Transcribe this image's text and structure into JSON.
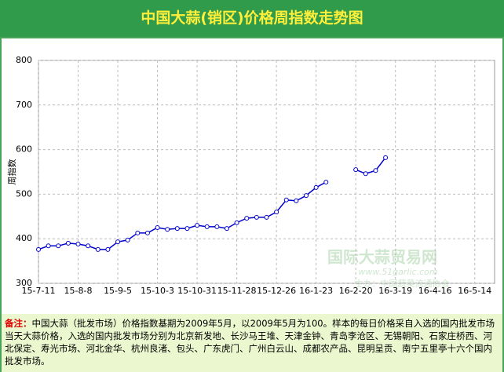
{
  "chart_data": {
    "type": "line",
    "title": "中国大蒜(销区)价格周指数走势图",
    "y_label": "周指数",
    "watermark": [
      "国际大蒜贸易网",
      "www.51garlic.com",
      "主办：中国蔬菜流通协会"
    ],
    "categories": [
      "15-7-11",
      null,
      null,
      null,
      "15-8-8",
      null,
      null,
      null,
      "15-9-5",
      null,
      null,
      null,
      "15-10-3",
      null,
      null,
      null,
      "15-10-31",
      null,
      null,
      null,
      "15-11-28",
      null,
      null,
      null,
      "15-12-26",
      null,
      null,
      null,
      "16-1-23",
      null,
      null,
      null,
      "16-2-20",
      null,
      null,
      null,
      "16-3-19",
      null,
      null,
      null,
      "16-4-16",
      null,
      null,
      null,
      "16-5-14",
      null,
      null
    ],
    "series": [
      {
        "name": "周指数",
        "color": "#0000cc",
        "values": [
          376,
          384,
          384,
          390,
          388,
          384,
          376,
          376,
          393,
          397,
          413,
          413,
          425,
          421,
          423,
          423,
          430,
          427,
          427,
          423,
          436,
          446,
          448,
          448,
          460,
          487,
          485,
          497,
          515,
          527,
          null,
          null,
          555,
          546,
          553,
          582,
          null,
          null,
          null,
          null,
          null,
          null,
          null,
          null,
          null,
          null,
          null
        ]
      }
    ],
    "ylim": [
      300,
      800
    ],
    "yticks": [
      300,
      400,
      500,
      600,
      700,
      800
    ],
    "grid": true
  },
  "note": {
    "label": "备注：",
    "text": "中国大蒜（批发市场）价格指数基期为2009年5月，以2009年5月为100。样本的每日价格采自入选的国内批发市场当天大蒜价格，入选的国内批发市场分别为北京新发地、长沙马王堆、天津金钟、青岛李沧区、无锡朝阳、石家庄桥西、河北保定、寿光市场、河北金华、杭州良渚、包头、广东虎门、广州白云山、成都农产品、昆明呈贡、南宁五里亭十六个国内批发市场。"
  }
}
